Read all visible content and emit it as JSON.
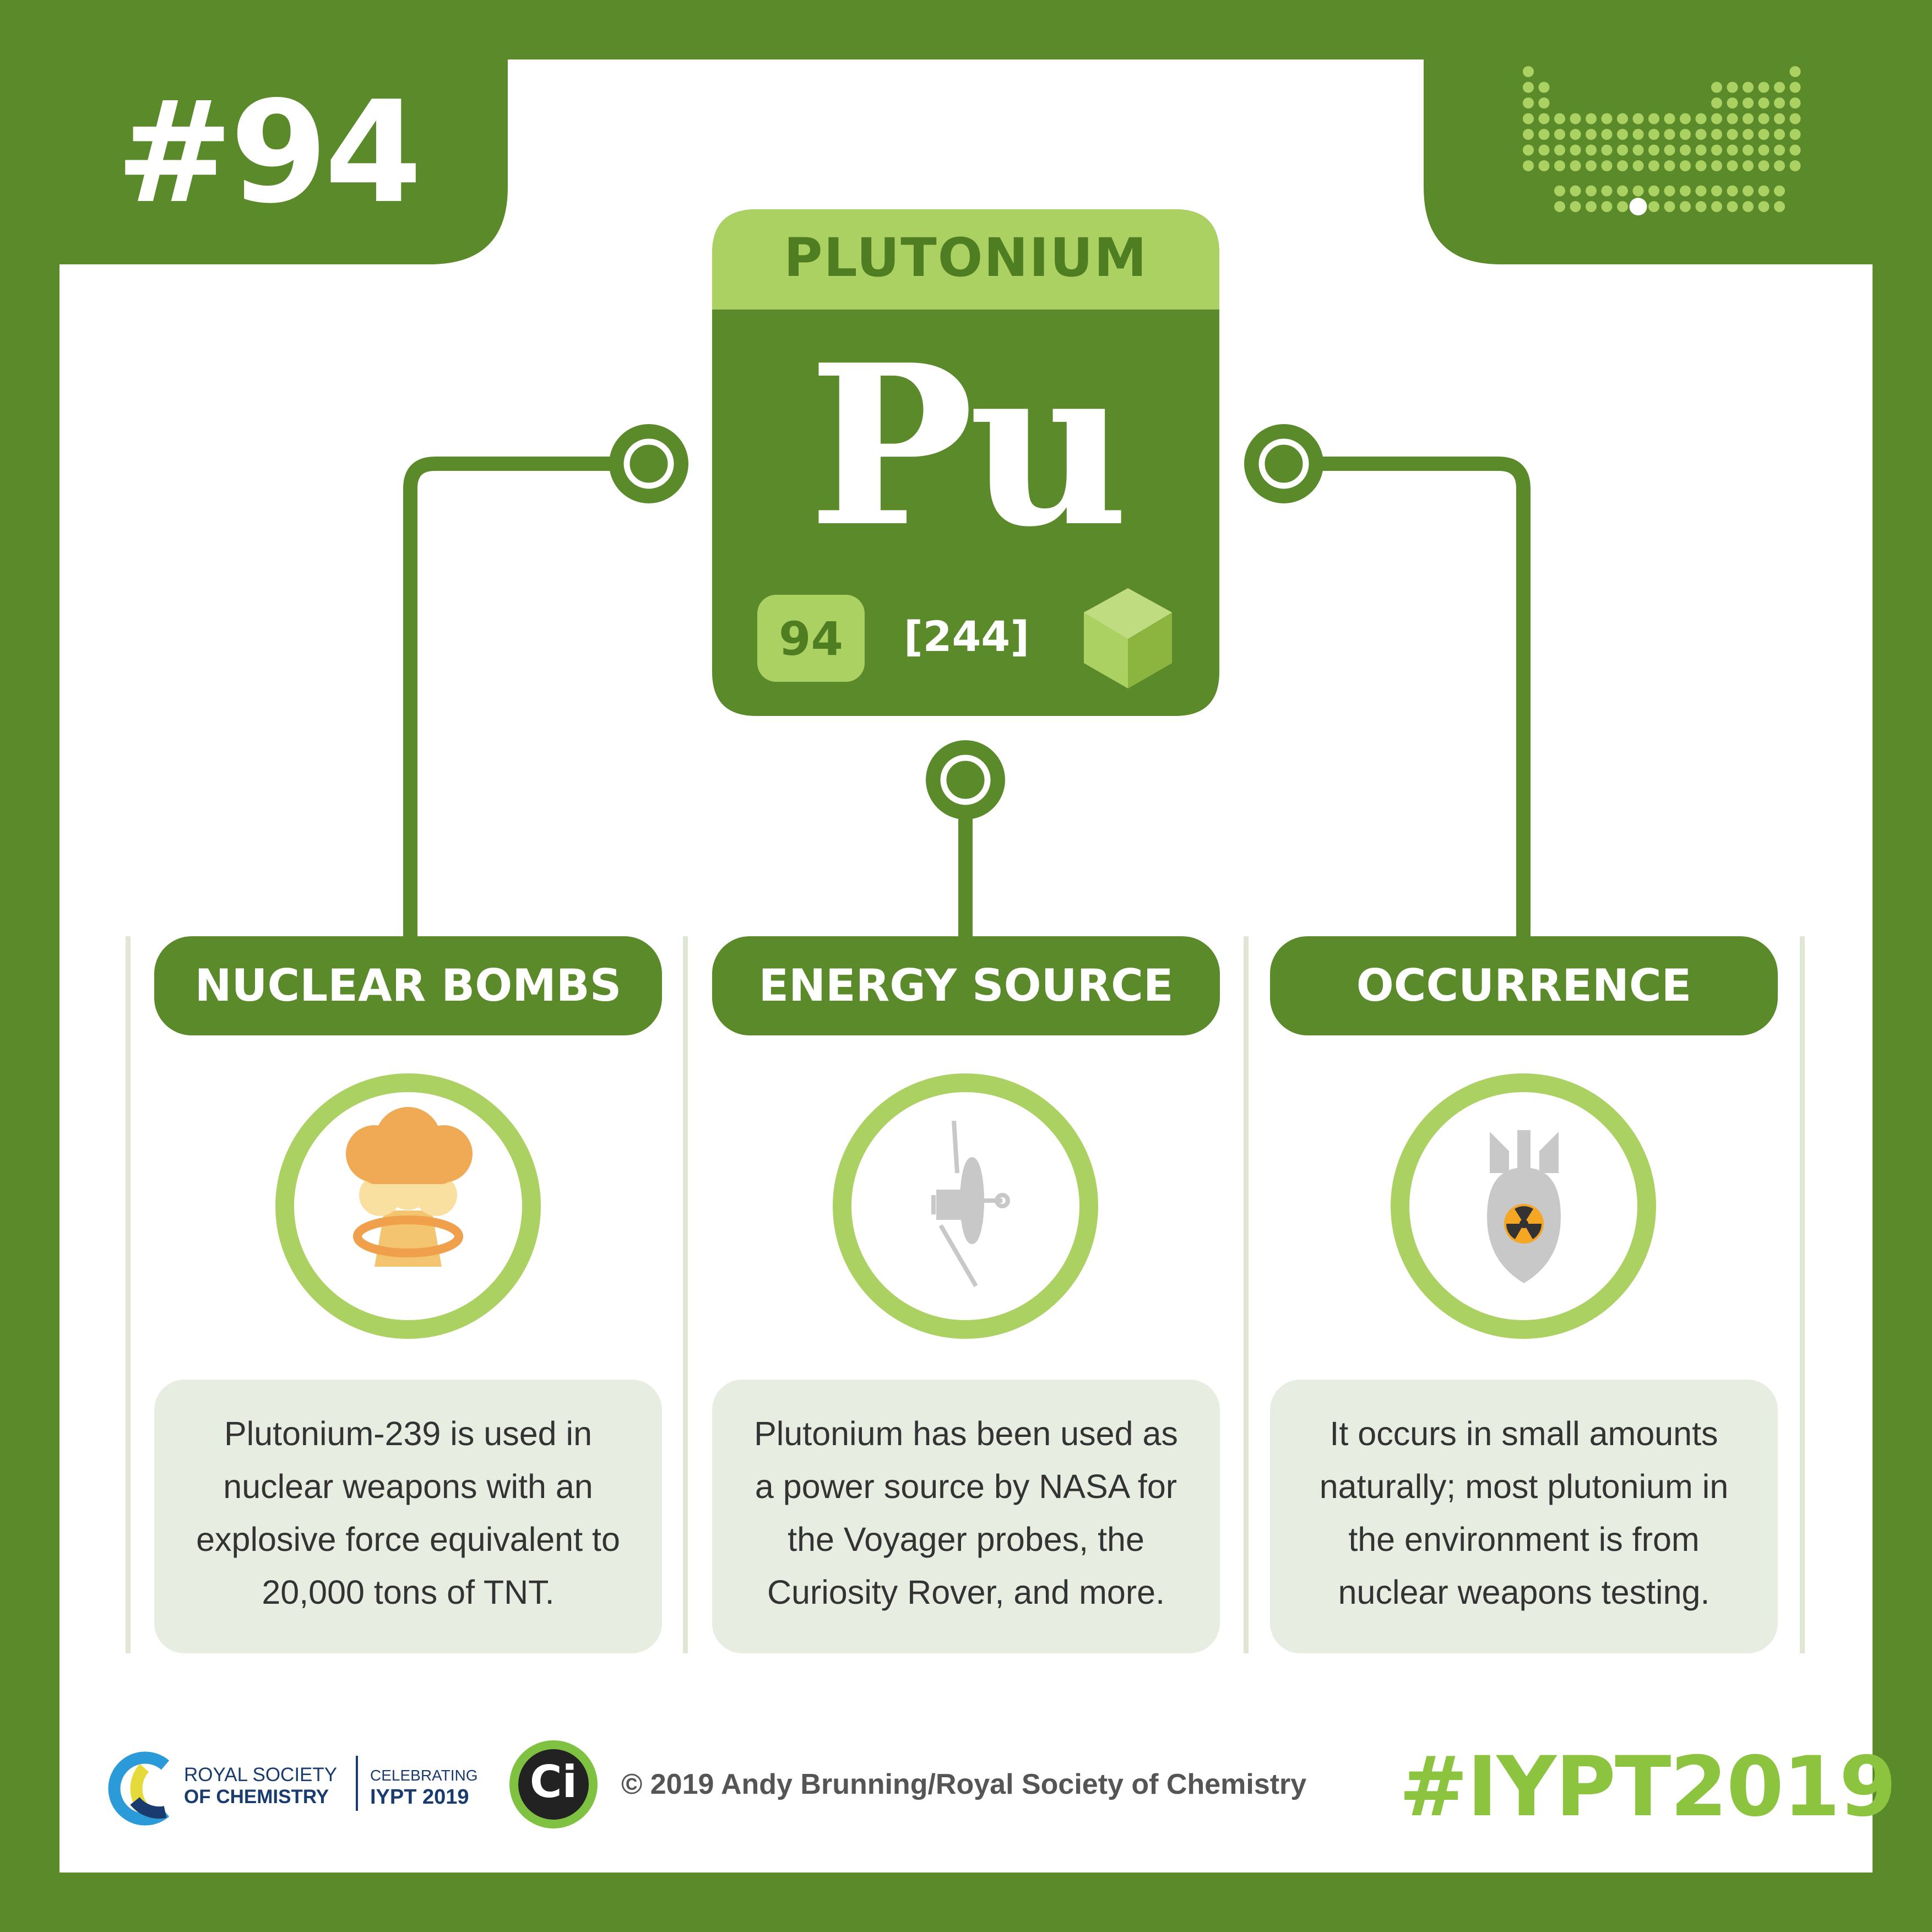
{
  "card_number": "#94",
  "element": {
    "name": "PLUTONIUM",
    "symbol": "Pu",
    "atomic_number": "94",
    "atomic_mass": "[244]",
    "state_icon": "cube-icon"
  },
  "sections": [
    {
      "title": "NUCLEAR BOMBS",
      "icon": "mushroom-cloud-icon",
      "text": "Plutonium-239 is used in nuclear weapons with an explosive force equivalent to 20,000 tons of TNT."
    },
    {
      "title": "ENERGY SOURCE",
      "icon": "voyager-probe-icon",
      "text": "Plutonium has been used as a power source by NASA for the Voyager probes, the Curiosity Rover, and more."
    },
    {
      "title": "OCCURRENCE",
      "icon": "nuclear-bomb-icon",
      "text": "It occurs in small amounts naturally; most plutonium in the environment is from nuclear weapons testing."
    }
  ],
  "footer": {
    "rsc_line1": "ROYAL SOCIETY",
    "rsc_line2": "OF CHEMISTRY",
    "celebrating": "CELEBRATING",
    "iypt": "IYPT 2019",
    "ci_logo": "Ci",
    "copyright": "© 2019 Andy Brunning/Royal Society of Chemistry",
    "hashtag": "#IYPT2019"
  },
  "colors": {
    "dark_green": "#5a8a2a",
    "light_green": "#acd163",
    "panel_grey": "#e8ede1",
    "white": "#ffffff"
  }
}
